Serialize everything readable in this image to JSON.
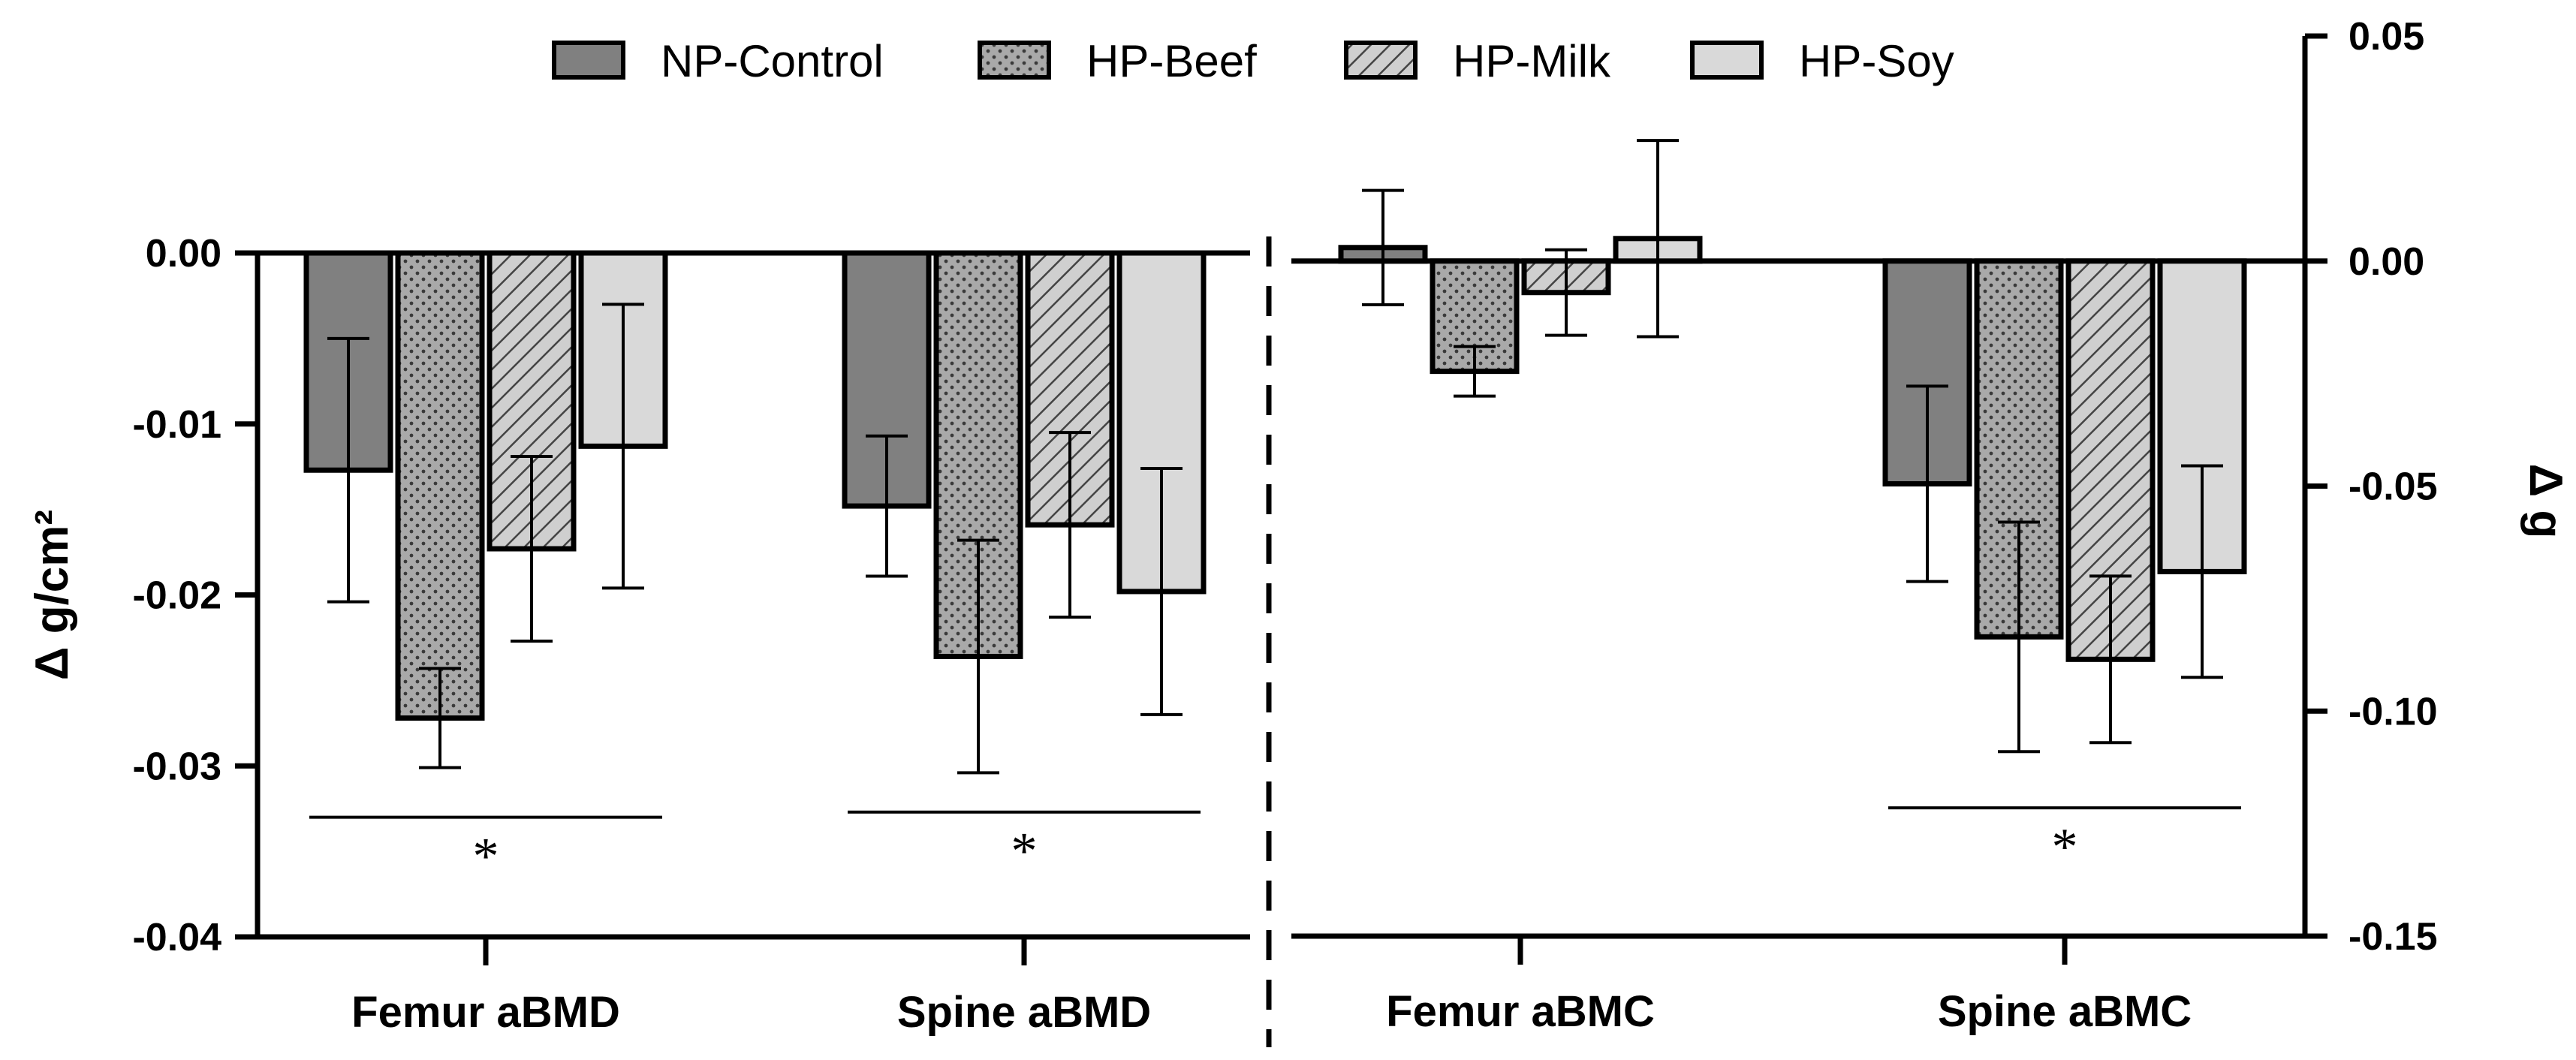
{
  "chart_data": {
    "type": "bar",
    "legend": {
      "placement": "top",
      "entries": [
        {
          "name": "NP-Control",
          "color": "#808080",
          "pattern": "solid"
        },
        {
          "name": "HP-Beef",
          "color": "#a9a9a9",
          "pattern": "dots"
        },
        {
          "name": "HP-Milk",
          "color": "#c8c8c8",
          "pattern": "hatch"
        },
        {
          "name": "HP-Soy",
          "color": "#d9d9d9",
          "pattern": "solid"
        }
      ]
    },
    "panels": [
      {
        "axis_side": "left",
        "ylabel": "Δ g/cm²",
        "ylim": [
          -0.04,
          0.0
        ],
        "yticks": [
          0.0,
          -0.01,
          -0.02,
          -0.03,
          -0.04
        ],
        "ytick_labels": [
          "0.00",
          "-0.01",
          "-0.02",
          "-0.03",
          "-0.04"
        ],
        "categories": [
          "Femur aBMD",
          "Spine aBMD"
        ],
        "series": [
          {
            "name": "NP-Control",
            "values": [
              -0.0127,
              -0.0148
            ],
            "errors": [
              0.0077,
              0.0041
            ]
          },
          {
            "name": "HP-Beef",
            "values": [
              -0.0272,
              -0.0236
            ],
            "errors": [
              0.0029,
              0.0068
            ]
          },
          {
            "name": "HP-Milk",
            "values": [
              -0.0173,
              -0.0159
            ],
            "errors": [
              0.0054,
              0.0054
            ]
          },
          {
            "name": "HP-Soy",
            "values": [
              -0.0113,
              -0.0198
            ],
            "errors": [
              0.0083,
              0.0072
            ]
          }
        ],
        "significance": [
          {
            "category": "Femur aBMD",
            "label": "*",
            "y": -0.033
          },
          {
            "category": "Spine aBMD",
            "label": "*",
            "y": -0.0327
          }
        ]
      },
      {
        "axis_side": "right",
        "ylabel": "Δ g",
        "ylim": [
          -0.15,
          0.05
        ],
        "yticks": [
          0.05,
          0.0,
          -0.05,
          -0.1,
          -0.15
        ],
        "ytick_labels": [
          "0.05",
          "0.00",
          "-0.05",
          "-0.10",
          "-0.15"
        ],
        "categories": [
          "Femur aBMC",
          "Spine aBMC"
        ],
        "series": [
          {
            "name": "NP-Control",
            "values": [
              0.003,
              -0.0495
            ],
            "errors": [
              0.0127,
              0.0217
            ]
          },
          {
            "name": "HP-Beef",
            "values": [
              -0.0245,
              -0.0835
            ],
            "errors": [
              0.0055,
              0.0255
            ]
          },
          {
            "name": "HP-Milk",
            "values": [
              -0.007,
              -0.0885
            ],
            "errors": [
              0.0095,
              0.0185
            ]
          },
          {
            "name": "HP-Soy",
            "values": [
              0.005,
              -0.069
            ],
            "errors": [
              0.0218,
              0.0235
            ]
          }
        ],
        "significance": [
          {
            "category": "Spine aBMC",
            "label": "*",
            "y": -0.1215
          }
        ]
      }
    ]
  }
}
